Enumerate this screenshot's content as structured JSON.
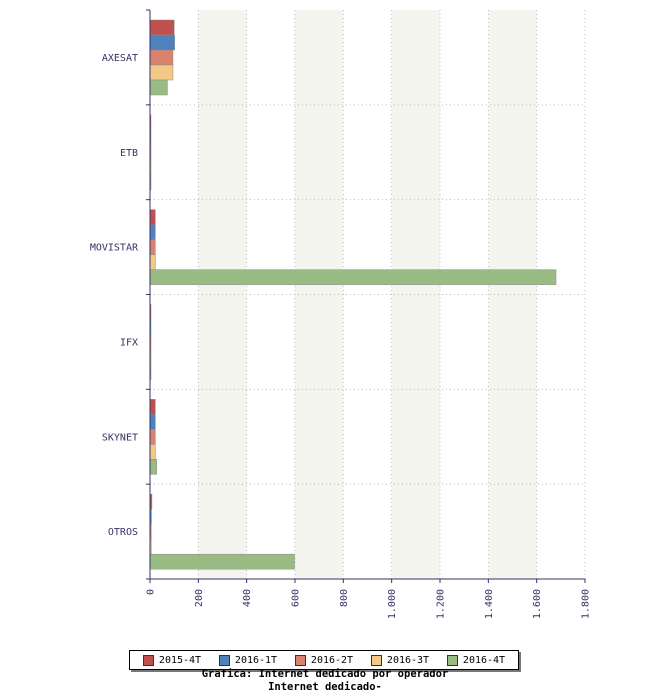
{
  "chart_data": {
    "type": "bar",
    "orientation": "horizontal",
    "title": "Grafica: Internet dedicado por operador",
    "subtitle": "Internet dedicado-",
    "categories": [
      "AXESAT",
      "ETB",
      "MOVISTAR",
      "IFX",
      "SKYNET",
      "OTROS"
    ],
    "x_ticks": [
      "0",
      "200",
      "400",
      "600",
      "800",
      "1.000",
      "1.200",
      "1.400",
      "1.600",
      "1.800"
    ],
    "xlim": [
      0,
      1800
    ],
    "grid": true,
    "legend_position": "bottom",
    "series": [
      {
        "name": "2015-4T",
        "color": "#c0504d",
        "values": [
          100,
          2,
          22,
          1,
          22,
          8
        ]
      },
      {
        "name": "2016-1T",
        "color": "#4f81bd",
        "values": [
          102,
          2,
          22,
          1,
          22,
          6
        ]
      },
      {
        "name": "2016-2T",
        "color": "#d9826e",
        "values": [
          95,
          2,
          22,
          1,
          22,
          5
        ]
      },
      {
        "name": "2016-3T",
        "color": "#f2c987",
        "values": [
          95,
          2,
          22,
          1,
          22,
          5
        ]
      },
      {
        "name": "2016-4T",
        "color": "#9bbb85",
        "values": [
          72,
          1,
          1680,
          1,
          28,
          598
        ]
      }
    ]
  }
}
